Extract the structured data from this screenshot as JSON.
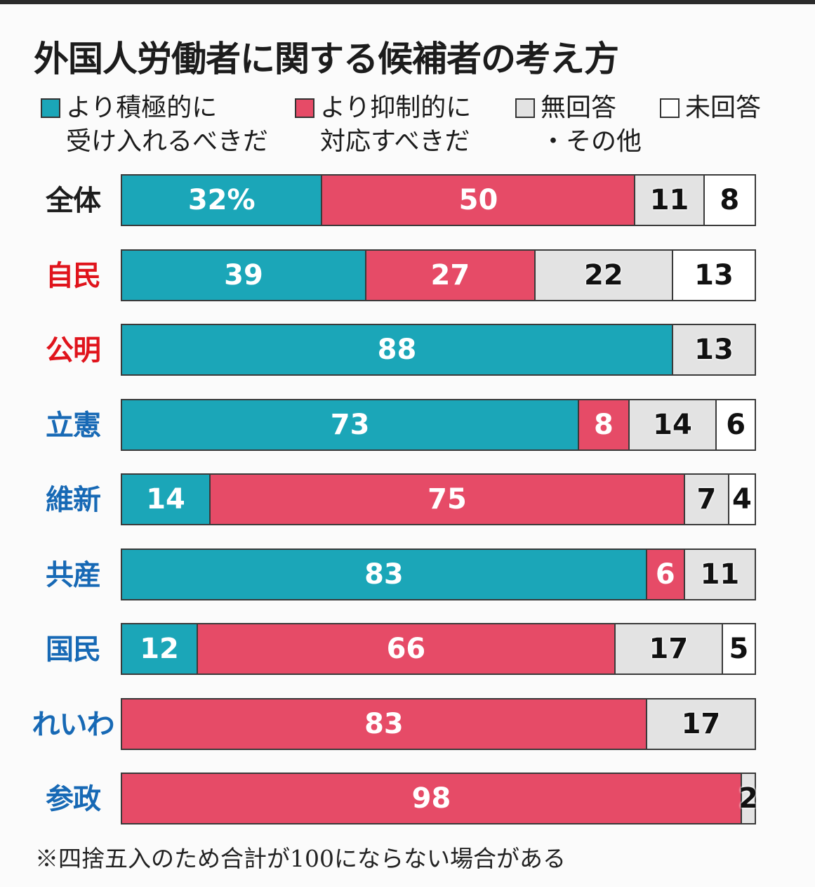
{
  "title": "外国人労働者に関する候補者の考え方",
  "colors": {
    "accept": "#1ba6b8",
    "restrict": "#e64b67",
    "no_answer": "#e3e3e3",
    "unanswered": "#ffffff",
    "ruling_label": "#e0141c",
    "opposition_label": "#1769b5",
    "total_label": "#1c1c1c"
  },
  "legend": [
    {
      "key": "accept",
      "line1": "より積極的に",
      "line2": "受け入れるべきだ"
    },
    {
      "key": "restrict",
      "line1": "より抑制的に",
      "line2": "対応すべきだ"
    },
    {
      "key": "no_answer",
      "line1": "無回答",
      "line2": "・その他"
    },
    {
      "key": "unanswered",
      "line1": "未回答",
      "line2": ""
    }
  ],
  "footnote": "※四捨五入のため合計が100にならない場合がある",
  "chart_data": {
    "type": "bar",
    "orientation": "horizontal",
    "stacked": true,
    "normalized": true,
    "title": "外国人労働者に関する候補者の考え方",
    "unit": "%",
    "legend_position": "top",
    "categories": [
      "全体",
      "自民",
      "公明",
      "立憲",
      "維新",
      "共産",
      "国民",
      "れいわ",
      "参政"
    ],
    "category_label_color": [
      "total",
      "ruling",
      "ruling",
      "opposition",
      "opposition",
      "opposition",
      "opposition",
      "opposition",
      "opposition"
    ],
    "series": [
      {
        "name": "より積極的に受け入れるべきだ",
        "key": "accept",
        "values": [
          32,
          39,
          88,
          73,
          14,
          83,
          12,
          0,
          0
        ]
      },
      {
        "name": "より抑制的に対応すべきだ",
        "key": "restrict",
        "values": [
          50,
          27,
          0,
          8,
          75,
          6,
          66,
          83,
          98
        ]
      },
      {
        "name": "無回答・その他",
        "key": "no_answer",
        "values": [
          11,
          22,
          13,
          14,
          7,
          11,
          17,
          17,
          2
        ]
      },
      {
        "name": "未回答",
        "key": "unanswered",
        "values": [
          8,
          13,
          0,
          6,
          4,
          0,
          5,
          0,
          0
        ]
      }
    ],
    "first_label_suffix": "%"
  }
}
